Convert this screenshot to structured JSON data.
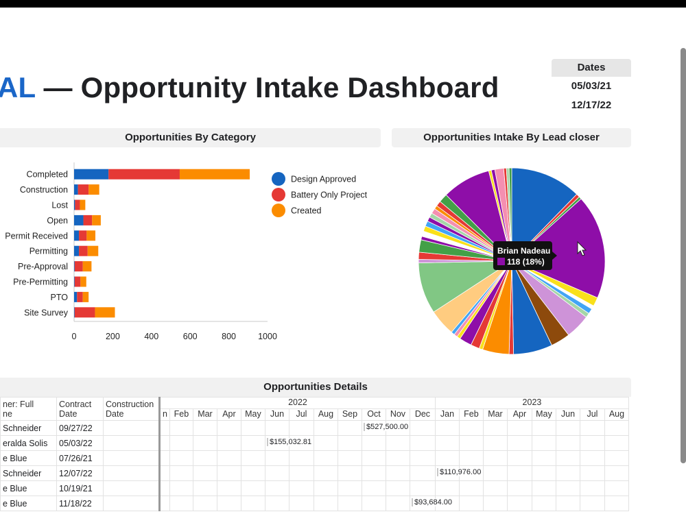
{
  "title": {
    "brand": "AL",
    "separator": "—",
    "text": "Opportunity Intake Dashboard"
  },
  "dates": {
    "header": "Dates",
    "start": "05/03/21",
    "end": "12/17/22"
  },
  "panels": {
    "category": "Opportunities By Category",
    "lead": "Opportunities Intake By Lead closer",
    "details": "Opportunities Details"
  },
  "chart_data": [
    {
      "type": "bar",
      "orientation": "horizontal",
      "stacked": true,
      "title": "Opportunities By Category",
      "categories": [
        "Completed",
        "Construction",
        "Lost",
        "Open",
        "Permit Received",
        "Permitting",
        "Pre-Approval",
        "Pre-Permitting",
        "PTO",
        "Site Survey"
      ],
      "series": [
        {
          "name": "Design Approved",
          "color": "#1565c0",
          "values": [
            178,
            20,
            5,
            48,
            25,
            25,
            3,
            3,
            15,
            3
          ]
        },
        {
          "name": "Battery Only Project",
          "color": "#e53935",
          "values": [
            368,
            55,
            25,
            45,
            40,
            45,
            42,
            30,
            30,
            105
          ]
        },
        {
          "name": "Created",
          "color": "#fb8c00",
          "values": [
            362,
            55,
            28,
            45,
            45,
            55,
            45,
            30,
            30,
            103
          ]
        }
      ],
      "xticks": [
        "0",
        "200",
        "400",
        "600",
        "800",
        "1000"
      ],
      "xlim": [
        0,
        1000
      ],
      "legend": "right"
    },
    {
      "type": "pie",
      "title": "Opportunities Intake By Lead closer",
      "slices": [
        {
          "value": 80,
          "color": "#1565c0"
        },
        {
          "value": 4,
          "color": "#e53935"
        },
        {
          "value": 3,
          "color": "#43a047"
        },
        {
          "value": 118,
          "color": "#8e0ea8"
        },
        {
          "value": 10,
          "color": "#f9e01b"
        },
        {
          "value": 4,
          "color": "#ffffff"
        },
        {
          "value": 6,
          "color": "#42a5f5"
        },
        {
          "value": 5,
          "color": "#a5d6a7"
        },
        {
          "value": 28,
          "color": "#ce93d8"
        },
        {
          "value": 22,
          "color": "#8d4a0c"
        },
        {
          "value": 44,
          "color": "#1565c0"
        },
        {
          "value": 5,
          "color": "#e53935"
        },
        {
          "value": 30,
          "color": "#fb8c00"
        },
        {
          "value": 4,
          "color": "#f9e01b"
        },
        {
          "value": 10,
          "color": "#e53935"
        },
        {
          "value": 14,
          "color": "#8e0ea8"
        },
        {
          "value": 4,
          "color": "#f9e01b"
        },
        {
          "value": 4,
          "color": "#f48fb1"
        },
        {
          "value": 4,
          "color": "#42a5f5"
        },
        {
          "value": 30,
          "color": "#ffcc80"
        },
        {
          "value": 58,
          "color": "#81c784"
        },
        {
          "value": 4,
          "color": "#ce93d8"
        },
        {
          "value": 8,
          "color": "#e53935"
        },
        {
          "value": 14,
          "color": "#43a047"
        },
        {
          "value": 4,
          "color": "#8e0ea8"
        },
        {
          "value": 6,
          "color": "#ffffff"
        },
        {
          "value": 6,
          "color": "#f9e01b"
        },
        {
          "value": 6,
          "color": "#42a5f5"
        },
        {
          "value": 5,
          "color": "#8e0ea8"
        },
        {
          "value": 5,
          "color": "#a5d6a7"
        },
        {
          "value": 6,
          "color": "#f48fb1"
        },
        {
          "value": 4,
          "color": "#fb8c00"
        },
        {
          "value": 6,
          "color": "#e53935"
        },
        {
          "value": 10,
          "color": "#43a047"
        },
        {
          "value": 55,
          "color": "#8e0ea8"
        },
        {
          "value": 3,
          "color": "#f9e01b"
        },
        {
          "value": 4,
          "color": "#8e0ea8"
        },
        {
          "value": 10,
          "color": "#f48fb1"
        },
        {
          "value": 3,
          "color": "#e53935"
        },
        {
          "value": 3,
          "color": "#a5d6a7"
        },
        {
          "value": 3,
          "color": "#43a047"
        }
      ],
      "tooltip": {
        "name": "Brian Nadeau",
        "value": "118 (18%)",
        "color": "#8e0ea8"
      }
    }
  ],
  "details": {
    "headers": [
      "ner: Full\nne",
      "Contract\nDate",
      "Construction\nDate"
    ],
    "years": [
      "2022",
      "2023"
    ],
    "months": [
      "n",
      "Feb",
      "Mar",
      "Apr",
      "May",
      "Jun",
      "Jul",
      "Aug",
      "Sep",
      "Oct",
      "Nov",
      "Dec",
      "Jan",
      "Feb",
      "Mar",
      "Apr",
      "May",
      "Jun",
      "Jul",
      "Aug"
    ],
    "rows": [
      {
        "name": "Schneider",
        "contract": "09/27/22",
        "construction": "",
        "month_index": 8,
        "amount": "$527,500.00"
      },
      {
        "name": "eralda Solis",
        "contract": "05/03/22",
        "construction": "",
        "month_index": 4,
        "amount": "$155,032.81"
      },
      {
        "name": "e Blue",
        "contract": "07/26/21",
        "construction": "",
        "month_index": -1,
        "amount": ""
      },
      {
        "name": "Schneider",
        "contract": "12/07/22",
        "construction": "",
        "month_index": 11,
        "amount": "$110,976.00"
      },
      {
        "name": "e Blue",
        "contract": "10/19/21",
        "construction": "",
        "month_index": -1,
        "amount": ""
      },
      {
        "name": "e Blue",
        "contract": "11/18/22",
        "construction": "",
        "month_index": 10,
        "amount": "$93,684.00"
      }
    ]
  }
}
